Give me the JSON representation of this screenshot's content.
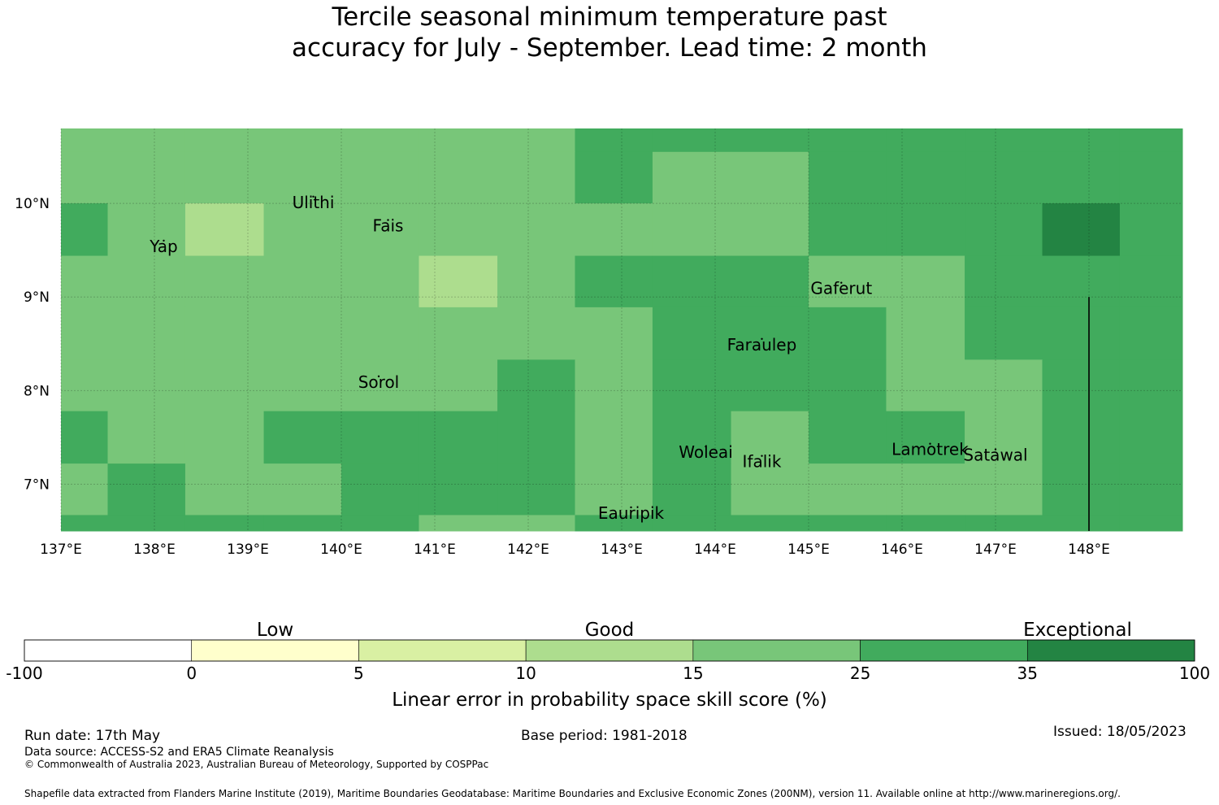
{
  "title": {
    "line1": "Tercile seasonal minimum temperature past",
    "line2": "accuracy for July - September. Lead time: 2 month"
  },
  "map": {
    "lon_range": [
      137.0,
      149.0
    ],
    "lat_range": [
      6.5,
      10.8
    ],
    "lon_ticks": [
      137,
      138,
      139,
      140,
      141,
      142,
      143,
      144,
      145,
      146,
      147,
      148
    ],
    "lon_tick_labels": [
      "137°E",
      "138°E",
      "139°E",
      "140°E",
      "141°E",
      "142°E",
      "143°E",
      "144°E",
      "145°E",
      "146°E",
      "147°E",
      "148°E"
    ],
    "lat_ticks": [
      10,
      9,
      8,
      7
    ],
    "lat_tick_labels": [
      "10°N",
      "9°N",
      "8°N",
      "7°N"
    ],
    "grid": true,
    "boundary_line": {
      "lon": 148.0,
      "lat_from": 6.5,
      "lat_to": 9.0
    },
    "skill_grid": {
      "lon_edges": [
        137.0,
        137.5,
        138.33,
        139.17,
        140.0,
        140.83,
        141.67,
        142.5,
        143.33,
        144.17,
        145.0,
        145.83,
        146.67,
        147.5,
        148.33,
        149.0
      ],
      "lat_edges": [
        10.8,
        10.55,
        10.0,
        9.44,
        8.89,
        8.33,
        7.78,
        7.22,
        6.67,
        6.5
      ],
      "classes": [
        [
          4,
          4,
          4,
          4,
          4,
          4,
          4,
          5,
          5,
          5,
          5,
          5,
          5,
          5,
          5
        ],
        [
          4,
          4,
          4,
          4,
          4,
          4,
          4,
          5,
          4,
          4,
          5,
          5,
          5,
          5,
          5
        ],
        [
          5,
          4,
          3,
          4,
          4,
          4,
          4,
          4,
          4,
          4,
          5,
          5,
          5,
          6,
          5
        ],
        [
          4,
          4,
          4,
          4,
          4,
          3,
          4,
          5,
          5,
          5,
          4,
          4,
          5,
          5,
          5
        ],
        [
          4,
          4,
          4,
          4,
          4,
          4,
          4,
          4,
          5,
          5,
          5,
          4,
          5,
          5,
          5
        ],
        [
          4,
          4,
          4,
          4,
          4,
          4,
          5,
          4,
          5,
          5,
          5,
          4,
          4,
          5,
          5
        ],
        [
          5,
          4,
          4,
          5,
          5,
          5,
          5,
          4,
          5,
          4,
          5,
          5,
          4,
          5,
          5
        ],
        [
          4,
          5,
          4,
          4,
          5,
          5,
          5,
          4,
          5,
          4,
          4,
          4,
          4,
          5,
          5
        ],
        [
          5,
          5,
          5,
          5,
          5,
          4,
          4,
          5,
          5,
          5,
          5,
          5,
          5,
          5,
          5
        ]
      ]
    },
    "places": [
      {
        "name": "Yap",
        "lon": 138.1,
        "lat": 9.55
      },
      {
        "name": "Ulithi",
        "lon": 139.7,
        "lat": 10.02
      },
      {
        "name": "Fais",
        "lon": 140.5,
        "lat": 9.77
      },
      {
        "name": "Gaferut",
        "lon": 145.35,
        "lat": 9.1
      },
      {
        "name": "Faraulep",
        "lon": 144.5,
        "lat": 8.5
      },
      {
        "name": "Sorol",
        "lon": 140.4,
        "lat": 8.1
      },
      {
        "name": "Woleai",
        "lon": 143.9,
        "lat": 7.35
      },
      {
        "name": "Ifalik",
        "lon": 144.5,
        "lat": 7.25
      },
      {
        "name": "Lamotrek",
        "lon": 146.3,
        "lat": 7.38
      },
      {
        "name": "Satawal",
        "lon": 147.0,
        "lat": 7.32
      },
      {
        "name": "Eauripik",
        "lon": 143.1,
        "lat": 6.7
      }
    ]
  },
  "colorbar": {
    "boundaries": [
      "-100",
      "0",
      "5",
      "10",
      "15",
      "25",
      "35",
      "100"
    ],
    "colors": [
      "#ffffff",
      "#ffffcc",
      "#d9f0a3",
      "#addd8e",
      "#78c679",
      "#41ab5d",
      "#238443"
    ],
    "categories": [
      "Low",
      "Good",
      "Exceptional"
    ],
    "label": "Linear error in probability space skill score (%)"
  },
  "footer": {
    "run_date": "Run date: 17th May",
    "base_period": "Base period: 1981-2018",
    "issued": "Issued: 18/05/2023",
    "data_source": "Data source: ACCESS-S2 and ERA5 Climate Reanalysis",
    "copyright": "© Commonwealth of Australia 2023, Australian Bureau of Meteorology, Supported by COSPPac",
    "shapefile": "Shapefile data extracted from Flanders Marine Institute (2019), Maritime Boundaries Geodatabase: Maritime Boundaries and Exclusive Economic Zones (200NM), version 11. Available online at http://www.marineregions.org/."
  }
}
